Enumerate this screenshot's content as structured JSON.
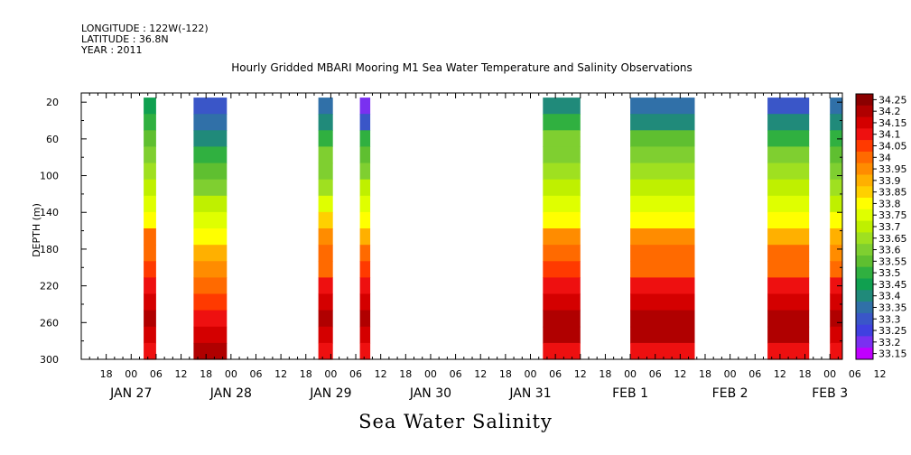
{
  "header": {
    "longitude": "LONGITUDE : 122W(-122)",
    "latitude": "LATITUDE : 36.8N",
    "year": "YEAR : 2011"
  },
  "footer_label": "Sea Water Salinity",
  "chart_data": {
    "type": "heatmap",
    "title": "Hourly Gridded MBARI Mooring M1 Sea Water Temperature and Salinity Observations",
    "ylabel": "DEPTH (m)",
    "xlabel": "",
    "ylim": [
      300,
      10
    ],
    "xlim_hours": [
      -12,
      171
    ],
    "y_ticks": [
      20,
      60,
      100,
      140,
      180,
      220,
      260,
      300
    ],
    "x_hour_labels": [
      "18",
      "00",
      "06",
      "12",
      "18",
      "00",
      "06",
      "12",
      "18",
      "00",
      "06",
      "12",
      "18",
      "00",
      "06",
      "12",
      "18",
      "00",
      "06",
      "12",
      "18",
      "00",
      "06",
      "12",
      "18",
      "00",
      "06",
      "12",
      "18",
      "00",
      "06",
      "12"
    ],
    "date_labels": [
      "JAN 27",
      "JAN 28",
      "JAN 29",
      "JAN 30",
      "JAN 31",
      "FEB  1",
      "FEB  2",
      "FEB  3"
    ],
    "colorbar": {
      "levels": [
        "34.25",
        "34.2",
        "34.15",
        "34.1",
        "34.05",
        "34",
        "33.95",
        "33.9",
        "33.85",
        "33.8",
        "33.75",
        "33.7",
        "33.65",
        "33.6",
        "33.55",
        "33.5",
        "33.45",
        "33.4",
        "33.35",
        "33.3",
        "33.25",
        "33.2",
        "33.15"
      ],
      "colors": [
        "#8b0000",
        "#b00000",
        "#d40000",
        "#ee1010",
        "#ff3a00",
        "#ff6a00",
        "#ff8c00",
        "#ffb000",
        "#ffd000",
        "#ffff00",
        "#dfff00",
        "#bff000",
        "#9fe020",
        "#7fcf30",
        "#5fbf30",
        "#30b040",
        "#10a050",
        "#208a7a",
        "#3070a8",
        "#3a56c8",
        "#4040e0",
        "#7a30f0",
        "#c000ff"
      ]
    },
    "data_blocks": [
      {
        "start_hour": 3,
        "end_hour": 6,
        "profile": [
          33.46,
          33.5,
          33.56,
          33.6,
          33.66,
          33.7,
          33.76,
          33.8,
          34.0,
          34.02,
          34.05,
          34.12,
          34.16,
          34.2,
          34.18,
          34.14
        ]
      },
      {
        "start_hour": 15,
        "end_hour": 23,
        "profile": [
          33.3,
          33.36,
          33.44,
          33.52,
          33.58,
          33.62,
          33.7,
          33.76,
          33.83,
          33.93,
          33.97,
          34.02,
          34.06,
          34.12,
          34.18,
          34.22
        ]
      },
      {
        "start_hour": 45,
        "end_hour": 48.5,
        "profile": [
          33.36,
          33.42,
          33.52,
          33.6,
          33.64,
          33.66,
          33.75,
          33.85,
          33.95,
          34.0,
          34.04,
          34.1,
          34.16,
          34.2,
          34.18,
          34.14
        ]
      },
      {
        "start_hour": 55,
        "end_hour": 57.5,
        "profile": [
          33.2,
          33.3,
          33.5,
          33.58,
          33.64,
          33.7,
          33.78,
          33.84,
          33.9,
          34.0,
          34.06,
          34.12,
          34.16,
          34.2,
          34.18,
          34.14
        ]
      },
      {
        "start_hour": 99,
        "end_hour": 108,
        "profile": [
          33.4,
          33.52,
          33.6,
          33.64,
          33.68,
          33.72,
          33.78,
          33.84,
          33.95,
          34.02,
          34.06,
          34.1,
          34.16,
          34.22,
          34.2,
          34.14
        ]
      },
      {
        "start_hour": 120,
        "end_hour": 135.5,
        "profile": [
          33.36,
          33.44,
          33.56,
          33.64,
          33.68,
          33.72,
          33.78,
          33.84,
          33.97,
          34.0,
          34.04,
          34.1,
          34.16,
          34.22,
          34.2,
          34.14
        ]
      },
      {
        "start_hour": 153,
        "end_hour": 163,
        "profile": [
          33.34,
          33.42,
          33.5,
          33.6,
          33.66,
          33.7,
          33.76,
          33.82,
          33.92,
          34.0,
          34.04,
          34.1,
          34.16,
          34.22,
          34.2,
          34.14
        ]
      },
      {
        "start_hour": 168,
        "end_hour": 171,
        "profile": [
          33.36,
          33.44,
          33.52,
          33.58,
          33.62,
          33.66,
          33.72,
          33.8,
          33.9,
          33.97,
          34.02,
          34.1,
          34.16,
          34.22,
          34.18,
          34.12
        ]
      }
    ]
  }
}
